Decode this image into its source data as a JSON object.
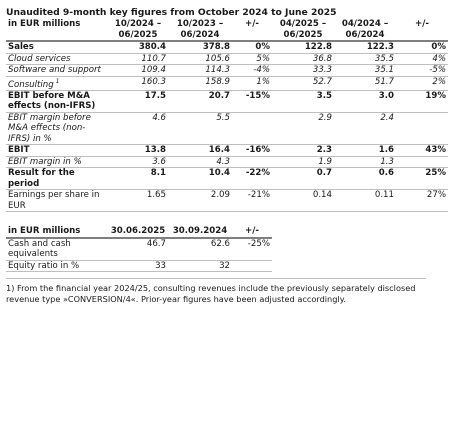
{
  "title": "Unaudited 9-month key figures from October 2024 to June 2025",
  "table1": {
    "headers": [
      "in EUR millions",
      "10/2024 – 06/2025",
      "10/2023 – 06/2024",
      "+/-",
      "04/2025 – 06/2025",
      "04/2024 – 06/2024",
      "+/-"
    ],
    "rows": [
      {
        "label": "Sales",
        "v": [
          "380.4",
          "378.8",
          "0%",
          "122.8",
          "122.3",
          "0%"
        ]
      },
      {
        "label": "Cloud services",
        "v": [
          "110.7",
          "105.6",
          "5%",
          "36.8",
          "35.5",
          "4%"
        ]
      },
      {
        "label": "Software and support",
        "v": [
          "109.4",
          "114.3",
          "-4%",
          "33.3",
          "35.1",
          "-5%"
        ]
      },
      {
        "label": "Consulting",
        "sup": "1",
        "v": [
          "160.3",
          "158.9",
          "1%",
          "52.7",
          "51.7",
          "2%"
        ]
      },
      {
        "label": "EBIT before M&A effects (non-IFRS)",
        "v": [
          "17.5",
          "20.7",
          "-15%",
          "3.5",
          "3.0",
          "19%"
        ]
      },
      {
        "label": "EBIT margin before M&A effects (non-IFRS) in %",
        "v": [
          "4.6",
          "5.5",
          "",
          "2.9",
          "2.4",
          ""
        ]
      },
      {
        "label": "EBIT",
        "v": [
          "13.8",
          "16.4",
          "-16%",
          "2.3",
          "1.6",
          "43%"
        ]
      },
      {
        "label": "EBIT margin in %",
        "v": [
          "3.6",
          "4.3",
          "",
          "1.9",
          "1.3",
          ""
        ]
      },
      {
        "label": "Result for the period",
        "v": [
          "8.1",
          "10.4",
          "-22%",
          "0.7",
          "0.6",
          "25%"
        ]
      },
      {
        "label": "Earnings per share in EUR",
        "v": [
          "1.65",
          "2.09",
          "-21%",
          "0.14",
          "0.11",
          "27%"
        ]
      }
    ]
  },
  "table2": {
    "headers": [
      "in EUR millions",
      "30.06.2025",
      "30.09.2024",
      "+/-"
    ],
    "rows": [
      {
        "label": "Cash and cash equivalents",
        "v": [
          "46.7",
          "62.6",
          "-25%"
        ]
      },
      {
        "label": "Equity ratio in %",
        "v": [
          "33",
          "32",
          ""
        ]
      }
    ]
  },
  "footnote": "1) From the financial year 2024/25, consulting revenues include the previously separately disclosed revenue type »CONVERSION/4«. Prior-year figures have been adjusted accordingly."
}
